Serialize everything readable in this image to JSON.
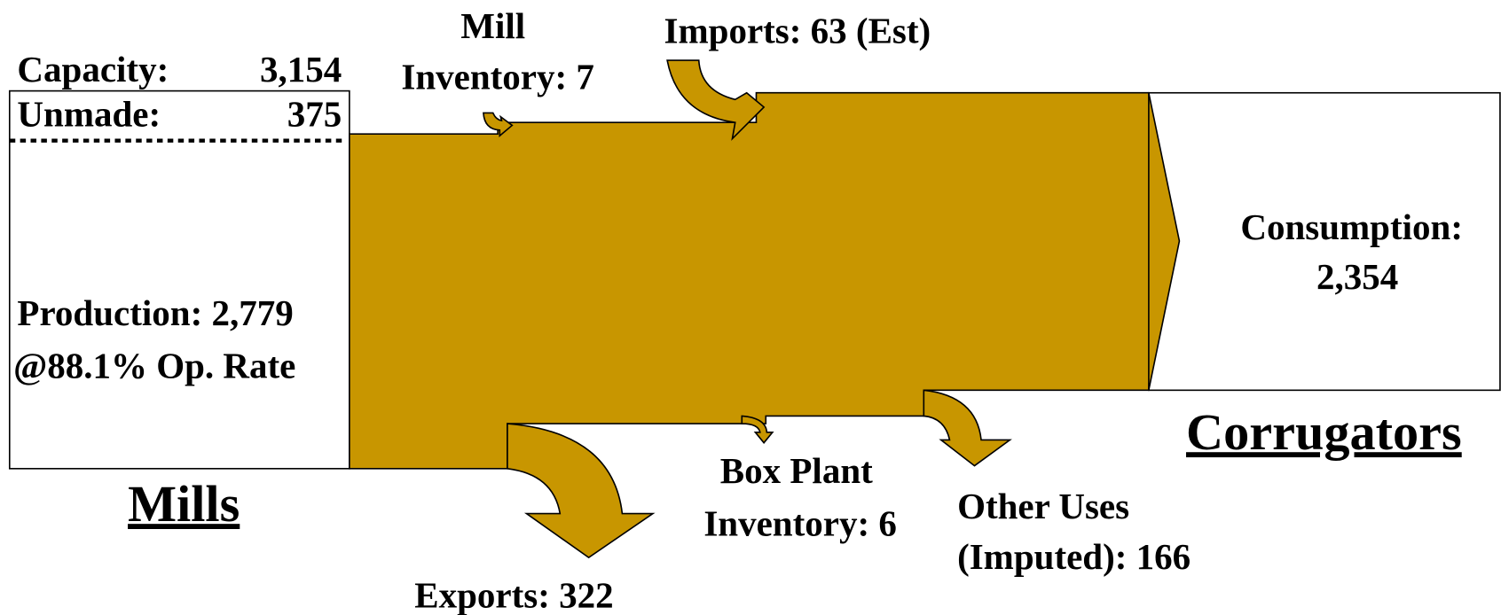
{
  "mills": {
    "title": "Mills",
    "capacity": {
      "label": "Capacity:",
      "value": "3,154"
    },
    "unmade": {
      "label": "Unmade:",
      "value": "375"
    },
    "production": [
      "Production: 2,779",
      "@88.1% Op. Rate"
    ]
  },
  "corrugators": {
    "title": "Corrugators",
    "consumption": [
      "Consumption:",
      "2,354"
    ]
  },
  "flows": {
    "mill_inventory": [
      "Mill",
      "Inventory: 7"
    ],
    "imports": "Imports: 63 (Est)",
    "exports": "Exports: 322",
    "box_plant_inventory": [
      "Box Plant",
      "Inventory: 6"
    ],
    "other_uses": [
      "Other Uses",
      "(Imputed): 166"
    ]
  }
}
